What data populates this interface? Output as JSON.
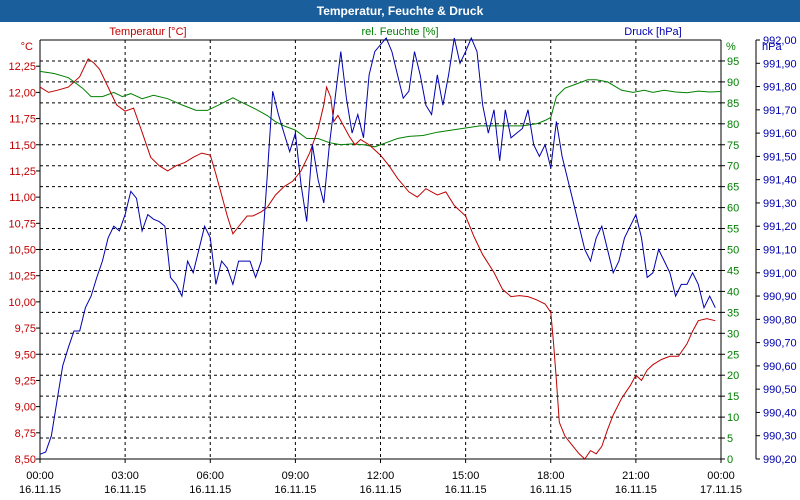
{
  "window": {
    "title": "Temperatur, Feuchte & Druck"
  },
  "colors": {
    "temperature": "#c00000",
    "humidity": "#008000",
    "pressure": "#0000b0",
    "axis": "#000000",
    "grid": "#000000",
    "titlebar": "#1a5f9c"
  },
  "chart_data": {
    "type": "line",
    "title": "Temperatur, Feuchte & Druck",
    "x": {
      "unit": "hours since 16.11.15 00:00",
      "range": [
        0,
        24
      ],
      "ticks": [
        0,
        3,
        6,
        9,
        12,
        15,
        18,
        21,
        24
      ],
      "tick_labels": [
        [
          "00:00",
          "16.11.15"
        ],
        [
          "03:00",
          "16.11.15"
        ],
        [
          "06:00",
          "16.11.15"
        ],
        [
          "09:00",
          "16.11.15"
        ],
        [
          "12:00",
          "16.11.15"
        ],
        [
          "15:00",
          "16.11.15"
        ],
        [
          "18:00",
          "16.11.15"
        ],
        [
          "21:00",
          "16.11.15"
        ],
        [
          "00:00",
          "17.11.15"
        ]
      ]
    },
    "axes": {
      "temperature": {
        "label": "Temperatur [°C]",
        "unit_label": "°C",
        "range": [
          8.5,
          12.5
        ],
        "ticks": [
          8.5,
          8.75,
          9.0,
          9.25,
          9.5,
          9.75,
          10.0,
          10.25,
          10.5,
          10.75,
          11.0,
          11.25,
          11.5,
          11.75,
          12.0,
          12.25
        ],
        "tick_labels": [
          "8,50",
          "8,75",
          "9,00",
          "9,25",
          "9,50",
          "9,75",
          "10,00",
          "10,25",
          "10,50",
          "10,75",
          "11,00",
          "11,25",
          "11,50",
          "11,75",
          "12,00",
          "12,25"
        ]
      },
      "humidity": {
        "label": "rel. Feuchte [%]",
        "unit_label": "%",
        "range": [
          0,
          100
        ],
        "ticks": [
          0,
          5,
          10,
          15,
          20,
          25,
          30,
          35,
          40,
          45,
          50,
          55,
          60,
          65,
          70,
          75,
          80,
          85,
          90,
          95
        ],
        "tick_labels": [
          "0",
          "5",
          "10",
          "15",
          "20",
          "25",
          "30",
          "35",
          "40",
          "45",
          "50",
          "55",
          "60",
          "65",
          "70",
          "75",
          "80",
          "85",
          "90",
          "95"
        ]
      },
      "pressure": {
        "label": "Druck [hPa]",
        "unit_label": "hPa",
        "range": [
          990.2,
          992.0
        ],
        "ticks": [
          990.2,
          990.3,
          990.4,
          990.5,
          990.6,
          990.7,
          990.8,
          990.9,
          991.0,
          991.1,
          991.2,
          991.3,
          991.4,
          991.5,
          991.6,
          991.7,
          991.8,
          991.9,
          992.0
        ],
        "tick_labels": [
          "990,20",
          "990,30",
          "990,40",
          "990,50",
          "990,60",
          "990,70",
          "990,80",
          "990,90",
          "991,00",
          "991,10",
          "991,20",
          "991,30",
          "991,40",
          "991,50",
          "991,60",
          "991,70",
          "991,80",
          "991,90",
          "992,00"
        ]
      }
    },
    "series": [
      {
        "name": "Temperatur [°C]",
        "axis": "temperature",
        "x": [
          0,
          0.3,
          0.6,
          1.0,
          1.4,
          1.7,
          1.9,
          2.1,
          2.4,
          2.7,
          3.0,
          3.3,
          3.6,
          3.9,
          4.2,
          4.5,
          4.8,
          5.1,
          5.4,
          5.7,
          6.0,
          6.2,
          6.4,
          6.6,
          6.8,
          7.0,
          7.3,
          7.5,
          7.8,
          8.0,
          8.3,
          8.6,
          8.9,
          9.2,
          9.5,
          9.8,
          10.0,
          10.1,
          10.25,
          10.35,
          10.5,
          10.7,
          10.9,
          11.1,
          11.3,
          11.6,
          12.0,
          12.3,
          12.6,
          13.0,
          13.3,
          13.6,
          14.0,
          14.3,
          14.6,
          15.0,
          15.3,
          15.6,
          16.0,
          16.3,
          16.6,
          16.9,
          17.2,
          17.5,
          17.8,
          18.0,
          18.1,
          18.2,
          18.3,
          18.5,
          18.7,
          19.0,
          19.2,
          19.4,
          19.6,
          19.8,
          20.0,
          20.2,
          20.5,
          20.8,
          21.0,
          21.2,
          21.4,
          21.6,
          21.9,
          22.2,
          22.5,
          22.8,
          23.0,
          23.2,
          23.5,
          23.8
        ],
        "values": [
          12.05,
          12.0,
          12.02,
          12.05,
          12.15,
          12.32,
          12.28,
          12.22,
          12.05,
          11.88,
          11.82,
          11.85,
          11.62,
          11.38,
          11.3,
          11.25,
          11.3,
          11.33,
          11.38,
          11.42,
          11.4,
          11.22,
          11.02,
          10.82,
          10.65,
          10.72,
          10.82,
          10.82,
          10.86,
          10.9,
          11.02,
          11.1,
          11.15,
          11.25,
          11.42,
          11.65,
          11.88,
          12.05,
          11.95,
          11.72,
          11.78,
          11.68,
          11.58,
          11.5,
          11.55,
          11.5,
          11.4,
          11.3,
          11.18,
          11.05,
          11.0,
          11.08,
          11.02,
          11.05,
          10.92,
          10.82,
          10.62,
          10.45,
          10.28,
          10.12,
          10.05,
          10.06,
          10.05,
          10.02,
          9.98,
          9.9,
          9.6,
          9.25,
          8.85,
          8.72,
          8.65,
          8.55,
          8.5,
          8.58,
          8.55,
          8.62,
          8.78,
          8.92,
          9.08,
          9.2,
          9.3,
          9.25,
          9.35,
          9.4,
          9.45,
          9.48,
          9.48,
          9.6,
          9.72,
          9.82,
          9.84,
          9.82
        ]
      },
      {
        "name": "rel. Feuchte [%]",
        "axis": "humidity",
        "x": [
          0,
          0.5,
          1.0,
          1.5,
          1.8,
          2.2,
          2.6,
          2.9,
          3.2,
          3.6,
          4.0,
          4.5,
          5.0,
          5.5,
          5.9,
          6.3,
          6.8,
          7.0,
          7.3,
          7.6,
          8.0,
          8.3,
          8.6,
          9.0,
          9.4,
          9.8,
          10.2,
          10.6,
          11.0,
          11.4,
          11.8,
          12.2,
          12.6,
          13.0,
          13.5,
          14.0,
          14.5,
          15.0,
          15.5,
          16.0,
          16.5,
          17.0,
          17.5,
          17.8,
          18.0,
          18.2,
          18.5,
          18.9,
          19.3,
          19.6,
          20.0,
          20.5,
          20.9,
          21.3,
          21.6,
          22.0,
          22.4,
          22.8,
          23.2,
          23.6,
          24.0
        ],
        "values": [
          92.5,
          92.0,
          91.0,
          88.5,
          86.5,
          86.5,
          87.5,
          86.5,
          87.2,
          86.0,
          86.8,
          86.0,
          84.5,
          83.2,
          83.2,
          84.5,
          86.2,
          85.5,
          84.5,
          83.5,
          82.0,
          80.5,
          79.5,
          78.5,
          76.5,
          76.5,
          75.5,
          75.0,
          75.2,
          75.0,
          74.5,
          75.5,
          76.5,
          77.0,
          77.2,
          78.0,
          78.5,
          79.0,
          79.5,
          79.5,
          79.5,
          79.5,
          80.0,
          80.8,
          81.5,
          86.5,
          88.5,
          89.5,
          90.5,
          90.5,
          90.0,
          88.0,
          87.5,
          88.0,
          87.5,
          88.0,
          87.6,
          87.4,
          87.8,
          87.6,
          87.7
        ]
      },
      {
        "name": "Druck [hPa]",
        "axis": "pressure",
        "x": [
          0,
          0.2,
          0.4,
          0.6,
          0.8,
          1.0,
          1.2,
          1.4,
          1.6,
          1.8,
          2.0,
          2.2,
          2.4,
          2.6,
          2.8,
          3.0,
          3.2,
          3.4,
          3.6,
          3.8,
          4.0,
          4.2,
          4.4,
          4.6,
          4.8,
          5.0,
          5.2,
          5.4,
          5.6,
          5.8,
          6.0,
          6.2,
          6.4,
          6.6,
          6.8,
          7.0,
          7.2,
          7.4,
          7.6,
          7.8,
          8.0,
          8.2,
          8.4,
          8.6,
          8.8,
          9.0,
          9.2,
          9.4,
          9.6,
          9.8,
          10.0,
          10.2,
          10.4,
          10.6,
          10.8,
          11.0,
          11.2,
          11.4,
          11.6,
          11.8,
          12.0,
          12.2,
          12.4,
          12.6,
          12.8,
          13.0,
          13.2,
          13.4,
          13.6,
          13.8,
          14.0,
          14.2,
          14.4,
          14.6,
          14.8,
          15.0,
          15.2,
          15.4,
          15.6,
          15.8,
          16.0,
          16.2,
          16.4,
          16.6,
          16.8,
          17.0,
          17.2,
          17.4,
          17.6,
          17.8,
          18.0,
          18.2,
          18.4,
          18.6,
          18.8,
          19.0,
          19.2,
          19.4,
          19.6,
          19.8,
          20.0,
          20.2,
          20.4,
          20.6,
          20.8,
          21.0,
          21.2,
          21.4,
          21.6,
          21.8,
          22.0,
          22.2,
          22.4,
          22.6,
          22.8,
          23.0,
          23.2,
          23.4,
          23.6,
          23.8
        ],
        "values": [
          990.22,
          990.23,
          990.3,
          990.45,
          990.6,
          990.68,
          990.75,
          990.75,
          990.85,
          990.9,
          990.98,
          991.05,
          991.15,
          991.2,
          991.18,
          991.25,
          991.35,
          991.32,
          991.18,
          991.25,
          991.23,
          991.22,
          991.2,
          990.98,
          990.95,
          990.9,
          991.05,
          991.0,
          991.1,
          991.2,
          991.15,
          990.95,
          991.05,
          991.02,
          990.95,
          991.05,
          991.05,
          991.05,
          990.98,
          991.05,
          991.4,
          991.78,
          991.68,
          991.6,
          991.52,
          991.6,
          991.38,
          991.22,
          991.55,
          991.4,
          991.3,
          991.55,
          991.75,
          991.95,
          991.75,
          991.6,
          991.68,
          991.58,
          991.85,
          991.95,
          991.98,
          992.05,
          991.95,
          991.85,
          991.75,
          991.78,
          991.95,
          991.85,
          991.72,
          991.68,
          991.85,
          991.72,
          991.85,
          992.02,
          991.9,
          991.95,
          992.03,
          991.95,
          991.72,
          991.6,
          991.7,
          991.48,
          991.7,
          991.58,
          991.6,
          991.62,
          991.7,
          991.55,
          991.5,
          991.55,
          991.45,
          991.65,
          991.5,
          991.4,
          991.3,
          991.2,
          991.1,
          991.05,
          991.15,
          991.2,
          991.1,
          991.0,
          991.05,
          991.15,
          991.2,
          991.25,
          991.15,
          990.98,
          991.0,
          991.1,
          991.05,
          991.0,
          990.9,
          990.95,
          990.95,
          991.0,
          990.95,
          990.85,
          990.9,
          990.85
        ]
      }
    ]
  }
}
